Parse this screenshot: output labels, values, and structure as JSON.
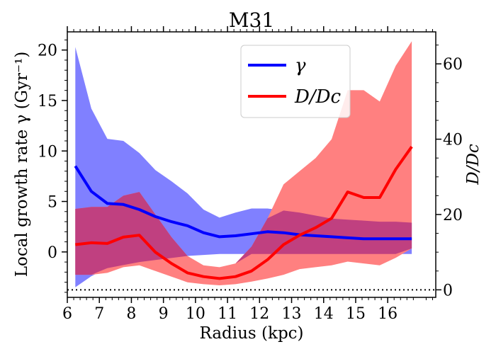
{
  "chart_data": {
    "type": "line",
    "title": "M31",
    "xlabel": "Radius (kpc)",
    "ylabel": "Local growth rate γ (Gyr⁻¹)",
    "y2label": "D/Dc",
    "xlim": [
      6.0,
      17.5
    ],
    "ylim": [
      -4.5,
      21.8
    ],
    "y2lim": [
      -2.0,
      68.5
    ],
    "xticks": [
      "6",
      "7",
      "8",
      "9",
      "10",
      "11",
      "12",
      "13",
      "14",
      "15",
      "16"
    ],
    "yticks": [
      "0",
      "5",
      "10",
      "15",
      "20"
    ],
    "y2ticks": [
      "0",
      "20",
      "40",
      "60"
    ],
    "grid": false,
    "legend_position": "top-right",
    "series": [
      {
        "name": "γ",
        "axis": "left",
        "color": "#0000ff",
        "band_color": "#8080ff",
        "x": [
          6.25,
          6.75,
          7.25,
          7.75,
          8.25,
          8.75,
          9.25,
          9.75,
          10.25,
          10.75,
          11.25,
          11.75,
          12.25,
          12.75,
          13.25,
          13.75,
          14.25,
          14.75,
          15.25,
          15.75,
          16.25,
          16.75
        ],
        "values": [
          8.5,
          6.0,
          4.8,
          4.7,
          4.2,
          3.5,
          3.0,
          2.6,
          1.9,
          1.5,
          1.6,
          1.8,
          2.0,
          1.9,
          1.7,
          1.6,
          1.5,
          1.4,
          1.3,
          1.3,
          1.3,
          1.3
        ],
        "upper": [
          20.3,
          14.2,
          11.2,
          11.0,
          9.8,
          8.1,
          7.0,
          5.8,
          4.2,
          3.4,
          3.9,
          4.3,
          4.3,
          4.1,
          3.9,
          3.6,
          3.3,
          3.2,
          3.1,
          3.0,
          3.0,
          2.9
        ],
        "lower": [
          -3.5,
          -2.4,
          -1.6,
          -1.3,
          -1.0,
          -0.8,
          -0.6,
          -0.4,
          -0.3,
          -0.2,
          -0.2,
          -0.2,
          -0.2,
          -0.2,
          -0.2,
          -0.2,
          -0.2,
          -0.2,
          -0.2,
          -0.2,
          -0.2,
          -0.2
        ]
      },
      {
        "name": "D/Dc",
        "axis": "right",
        "color": "#ff0000",
        "band_color": "#ff8080",
        "x": [
          6.25,
          6.75,
          7.25,
          7.75,
          8.25,
          8.75,
          9.25,
          9.75,
          10.25,
          10.75,
          11.25,
          11.75,
          12.25,
          12.75,
          13.25,
          13.75,
          14.25,
          14.75,
          15.25,
          15.75,
          16.25,
          16.75
        ],
        "values": [
          12.0,
          12.5,
          12.3,
          14.0,
          14.5,
          10.0,
          7.0,
          4.5,
          3.5,
          3.0,
          3.5,
          5.0,
          8.0,
          12.0,
          14.5,
          16.5,
          19.0,
          26.0,
          24.5,
          24.5,
          32.0,
          38.0
        ],
        "upper": [
          21.5,
          22.0,
          22.0,
          25.0,
          26.0,
          20.0,
          14.0,
          9.0,
          6.5,
          6.0,
          7.0,
          11.5,
          19.0,
          28.0,
          31.5,
          35.0,
          40.0,
          53.0,
          53.0,
          50.0,
          59.5,
          66.0
        ],
        "lower": [
          4.0,
          4.0,
          4.5,
          6.0,
          6.5,
          5.0,
          3.5,
          2.0,
          1.5,
          1.2,
          1.5,
          2.2,
          3.0,
          4.0,
          5.5,
          6.0,
          6.5,
          7.5,
          7.0,
          6.5,
          8.5,
          11.0
        ]
      }
    ],
    "overlap_color": "#c04080",
    "reference_line": {
      "axis": "right",
      "value": 0,
      "style": "dotted"
    }
  }
}
